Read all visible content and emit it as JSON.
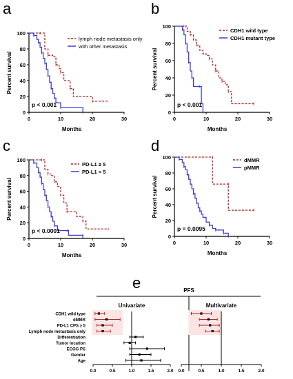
{
  "panels": {
    "a": "a",
    "b": "b",
    "c": "c",
    "d": "d",
    "e": "e"
  },
  "chart_data": [
    {
      "type": "line",
      "id": "a",
      "xlabel": "Months",
      "ylabel": "Percent survival",
      "xlim": [
        0,
        30
      ],
      "ylim": [
        0,
        100
      ],
      "xticks": [
        0,
        10,
        20,
        30
      ],
      "yticks": [
        0,
        20,
        40,
        60,
        80,
        100
      ],
      "pvalue": "p < 0.001",
      "legend_position": "top-right",
      "series": [
        {
          "name": "lymph node metastasis only",
          "color": "#b22222",
          "dashed": true,
          "points": [
            [
              0,
              100
            ],
            [
              3.5,
              100
            ],
            [
              5,
              80
            ],
            [
              6,
              72
            ],
            [
              7.5,
              70
            ],
            [
              8.5,
              60
            ],
            [
              9.5,
              55
            ],
            [
              10,
              50
            ],
            [
              11,
              40
            ],
            [
              13,
              30
            ],
            [
              14,
              20
            ],
            [
              20,
              14
            ],
            [
              25,
              14
            ]
          ]
        },
        {
          "name": "with other metastasis",
          "color": "#3b3bd6",
          "dashed": false,
          "points": [
            [
              0,
              100
            ],
            [
              1.5,
              97
            ],
            [
              2.5,
              92
            ],
            [
              3,
              88
            ],
            [
              3.5,
              82
            ],
            [
              4,
              75
            ],
            [
              4.5,
              68
            ],
            [
              5,
              62
            ],
            [
              5.5,
              54
            ],
            [
              6,
              46
            ],
            [
              6.5,
              38
            ],
            [
              7,
              30
            ],
            [
              7.5,
              24
            ],
            [
              8,
              18
            ],
            [
              8.5,
              12
            ],
            [
              10,
              6
            ],
            [
              17,
              6
            ],
            [
              17,
              0
            ]
          ]
        }
      ]
    },
    {
      "type": "line",
      "id": "b",
      "xlabel": "Months",
      "ylabel": "Percent survival",
      "xlim": [
        0,
        30
      ],
      "ylim": [
        0,
        100
      ],
      "xticks": [
        0,
        10,
        20,
        30
      ],
      "yticks": [
        0,
        20,
        40,
        60,
        80,
        100
      ],
      "pvalue": "p < 0.001",
      "legend_position": "top-right",
      "series": [
        {
          "name": "CDH1 wild type",
          "color": "#b22222",
          "dashed": true,
          "points": [
            [
              0,
              100
            ],
            [
              3,
              100
            ],
            [
              4,
              94
            ],
            [
              5,
              90
            ],
            [
              6,
              84
            ],
            [
              7,
              78
            ],
            [
              8,
              72
            ],
            [
              9,
              68
            ],
            [
              10,
              66
            ],
            [
              11,
              62
            ],
            [
              12,
              55
            ],
            [
              13,
              48
            ],
            [
              14,
              40
            ],
            [
              15,
              36
            ],
            [
              16,
              32
            ],
            [
              17,
              24
            ],
            [
              18,
              10
            ],
            [
              25,
              10
            ]
          ]
        },
        {
          "name": "CDH1 mutant type",
          "color": "#3b3bd6",
          "dashed": false,
          "points": [
            [
              0,
              100
            ],
            [
              2.5,
              96
            ],
            [
              3,
              90
            ],
            [
              3.5,
              80
            ],
            [
              4,
              70
            ],
            [
              4.5,
              58
            ],
            [
              5,
              48
            ],
            [
              5.5,
              40
            ],
            [
              6,
              30
            ],
            [
              8,
              30
            ],
            [
              8.5,
              10
            ],
            [
              9,
              0
            ]
          ]
        }
      ]
    },
    {
      "type": "line",
      "id": "c",
      "xlabel": "Months",
      "ylabel": "Percent survival",
      "xlim": [
        0,
        30
      ],
      "ylim": [
        0,
        100
      ],
      "xticks": [
        0,
        10,
        20,
        30
      ],
      "yticks": [
        0,
        20,
        40,
        60,
        80,
        100
      ],
      "pvalue": "p < 0.0001",
      "legend_position": "top-right",
      "series": [
        {
          "name": "PD-L1 ≥ 5",
          "color": "#b22222",
          "dashed": true,
          "points": [
            [
              0,
              100
            ],
            [
              4,
              100
            ],
            [
              5,
              88
            ],
            [
              6,
              82
            ],
            [
              7,
              80
            ],
            [
              8,
              72
            ],
            [
              9,
              66
            ],
            [
              10,
              55
            ],
            [
              11,
              45
            ],
            [
              12,
              34
            ],
            [
              15,
              28
            ],
            [
              17,
              22
            ],
            [
              18,
              12
            ],
            [
              25,
              12
            ]
          ]
        },
        {
          "name": "PD-L1 < 5",
          "color": "#3b3bd6",
          "dashed": false,
          "points": [
            [
              0,
              100
            ],
            [
              1.5,
              96
            ],
            [
              2.5,
              90
            ],
            [
              3,
              84
            ],
            [
              3.5,
              78
            ],
            [
              4,
              70
            ],
            [
              4.5,
              62
            ],
            [
              5,
              55
            ],
            [
              5.5,
              48
            ],
            [
              6,
              40
            ],
            [
              6.5,
              34
            ],
            [
              7,
              28
            ],
            [
              7.5,
              22
            ],
            [
              8,
              16
            ],
            [
              9,
              10
            ],
            [
              12,
              10
            ],
            [
              12.5,
              4
            ],
            [
              17,
              4
            ],
            [
              17,
              0
            ]
          ]
        }
      ]
    },
    {
      "type": "line",
      "id": "d",
      "xlabel": "Months",
      "ylabel": "Percent survival",
      "xlim": [
        0,
        30
      ],
      "ylim": [
        0,
        100
      ],
      "xticks": [
        0,
        10,
        20,
        30
      ],
      "yticks": [
        0,
        20,
        40,
        60,
        80,
        100
      ],
      "pvalue": "p = 0.0095",
      "legend_position": "top-right",
      "series": [
        {
          "name": "dMMR",
          "color": "#b22222",
          "dashed": true,
          "points": [
            [
              0,
              100
            ],
            [
              12,
              100
            ],
            [
              12,
              66
            ],
            [
              17,
              66
            ],
            [
              17,
              33
            ],
            [
              25,
              33
            ]
          ]
        },
        {
          "name": "pMMR",
          "color": "#3b3bd6",
          "dashed": false,
          "points": [
            [
              0,
              100
            ],
            [
              1.5,
              97
            ],
            [
              2.5,
              93
            ],
            [
              3,
              88
            ],
            [
              3.5,
              84
            ],
            [
              4,
              78
            ],
            [
              4.5,
              72
            ],
            [
              5,
              66
            ],
            [
              5.5,
              60
            ],
            [
              6,
              54
            ],
            [
              6.5,
              48
            ],
            [
              7,
              42
            ],
            [
              7.5,
              36
            ],
            [
              8,
              32
            ],
            [
              8.5,
              28
            ],
            [
              9,
              24
            ],
            [
              10,
              18
            ],
            [
              11,
              14
            ],
            [
              12,
              10
            ],
            [
              13,
              8
            ],
            [
              15,
              8
            ],
            [
              15.5,
              4
            ],
            [
              17,
              4
            ],
            [
              17,
              0
            ]
          ]
        }
      ]
    },
    {
      "type": "forest",
      "id": "e",
      "title": "PFS",
      "rows": [
        "CDH1 wild type",
        "dMMR",
        "PD-L1 CPS ≥ 5",
        "Lymph node metastasis only",
        "Differentiation",
        "Tumor location",
        "ECOG PS",
        "Gender",
        "Age"
      ],
      "univariate": {
        "label": "Univariate",
        "xlim": [
          0,
          2.0
        ],
        "xticks": [
          "0.0",
          "0.5",
          "1.0",
          "1.5",
          "2.0"
        ],
        "reference": 1.0,
        "estimates": [
          {
            "est": 0.15,
            "lo": 0.05,
            "hi": 0.3
          },
          {
            "est": 0.35,
            "lo": 0.05,
            "hi": 0.7
          },
          {
            "est": 0.25,
            "lo": 0.1,
            "hi": 0.5
          },
          {
            "est": 0.25,
            "lo": 0.1,
            "hi": 0.45
          },
          {
            "est": 1.1,
            "lo": 0.95,
            "hi": 1.3
          },
          {
            "est": 0.95,
            "lo": 0.8,
            "hi": 1.1
          },
          {
            "est": 1.4,
            "lo": 0.95,
            "hi": 1.85
          },
          {
            "est": 1.2,
            "lo": 0.95,
            "hi": 1.5
          },
          {
            "est": 1.25,
            "lo": 0.85,
            "hi": 1.75
          }
        ]
      },
      "multivariate": {
        "label": "Multivariate",
        "xlim": [
          0,
          2.0
        ],
        "xticks": [
          "0.0",
          "0.5",
          "1.0",
          "1.5",
          "2.0"
        ],
        "reference": 1.0,
        "estimates": [
          {
            "est": 0.5,
            "lo": 0.25,
            "hi": 0.75
          },
          {
            "est": 0.68,
            "lo": 0.45,
            "hi": 0.9
          },
          {
            "est": 0.72,
            "lo": 0.45,
            "hi": 0.95
          },
          {
            "est": 0.78,
            "lo": 0.6,
            "hi": 0.95
          }
        ]
      },
      "highlight_color": "#fbe4e4",
      "ci_color": "#b22222"
    }
  ]
}
